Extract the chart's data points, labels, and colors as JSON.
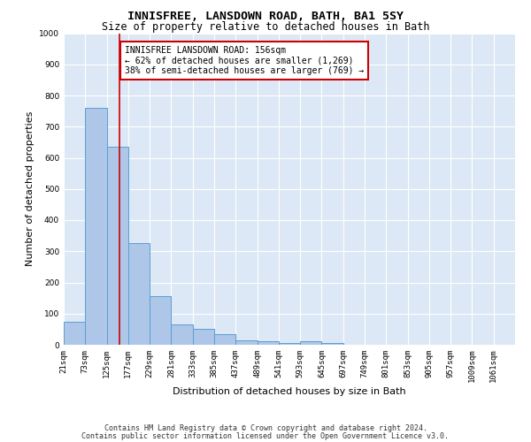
{
  "title1": "INNISFREE, LANSDOWN ROAD, BATH, BA1 5SY",
  "title2": "Size of property relative to detached houses in Bath",
  "xlabel": "Distribution of detached houses by size in Bath",
  "ylabel": "Number of detached properties",
  "bin_labels": [
    "21sqm",
    "73sqm",
    "125sqm",
    "177sqm",
    "229sqm",
    "281sqm",
    "333sqm",
    "385sqm",
    "437sqm",
    "489sqm",
    "541sqm",
    "593sqm",
    "645sqm",
    "697sqm",
    "749sqm",
    "801sqm",
    "853sqm",
    "905sqm",
    "957sqm",
    "1009sqm",
    "1061sqm"
  ],
  "bin_edges": [
    21,
    73,
    125,
    177,
    229,
    281,
    333,
    385,
    437,
    489,
    541,
    593,
    645,
    697,
    749,
    801,
    853,
    905,
    957,
    1009,
    1061,
    1113
  ],
  "bar_heights": [
    75,
    760,
    635,
    325,
    155,
    65,
    50,
    35,
    15,
    10,
    5,
    10,
    5,
    0,
    0,
    0,
    0,
    0,
    0,
    0,
    0
  ],
  "bar_color": "#aec6e8",
  "bar_edge_color": "#5a9fd4",
  "bar_linewidth": 0.7,
  "vline_x": 156,
  "vline_color": "#cc0000",
  "vline_linewidth": 1.2,
  "annotation_box_text": "INNISFREE LANSDOWN ROAD: 156sqm\n← 62% of detached houses are smaller (1,269)\n38% of semi-detached houses are larger (769) →",
  "annotation_box_color": "#cc0000",
  "annotation_box_facecolor": "white",
  "ylim": [
    0,
    1000
  ],
  "xlim_min": 21,
  "xlim_max": 1113,
  "background_color": "#dce8f5",
  "grid_color": "white",
  "footer1": "Contains HM Land Registry data © Crown copyright and database right 2024.",
  "footer2": "Contains public sector information licensed under the Open Government Licence v3.0.",
  "title1_fontsize": 9.5,
  "title2_fontsize": 8.5,
  "ann_fontsize": 7,
  "tick_fontsize": 6.5,
  "ylabel_fontsize": 8,
  "xlabel_fontsize": 8,
  "footer_fontsize": 6
}
